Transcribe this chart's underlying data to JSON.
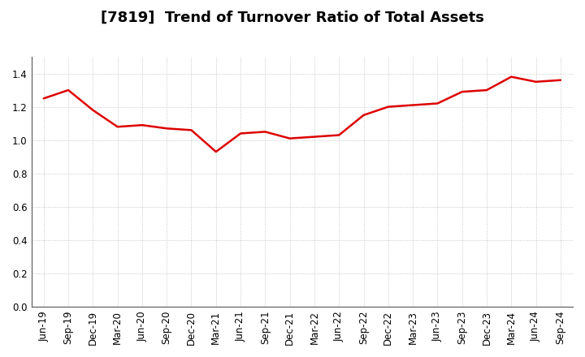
{
  "title": "[7819]  Trend of Turnover Ratio of Total Assets",
  "x_labels": [
    "Jun-19",
    "Sep-19",
    "Dec-19",
    "Mar-20",
    "Jun-20",
    "Sep-20",
    "Dec-20",
    "Mar-21",
    "Jun-21",
    "Sep-21",
    "Dec-21",
    "Mar-22",
    "Jun-22",
    "Sep-22",
    "Dec-22",
    "Mar-23",
    "Jun-23",
    "Sep-23",
    "Dec-23",
    "Mar-24",
    "Jun-24",
    "Sep-24"
  ],
  "y_values": [
    1.25,
    1.3,
    1.18,
    1.08,
    1.09,
    1.07,
    1.06,
    0.93,
    1.04,
    1.05,
    1.01,
    1.02,
    1.03,
    1.15,
    1.2,
    1.21,
    1.22,
    1.29,
    1.3,
    1.38,
    1.35,
    1.36
  ],
  "line_color": "#dd0000",
  "ylim": [
    0.0,
    1.5
  ],
  "yticks": [
    0.0,
    0.2,
    0.4,
    0.6,
    0.8,
    1.0,
    1.2,
    1.4
  ],
  "grid_color": "#bbbbbb",
  "background_color": "#ffffff",
  "title_fontsize": 13,
  "tick_fontsize": 8.5
}
